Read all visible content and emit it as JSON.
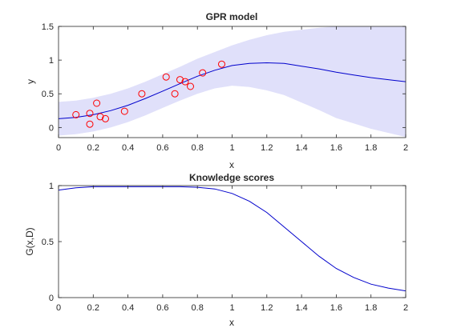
{
  "chart_data": [
    {
      "type": "line",
      "title": "GPR model",
      "xlabel": "x",
      "ylabel": "y",
      "xlim": [
        0,
        2
      ],
      "ylim": [
        -0.15,
        1.5
      ],
      "xticks": [
        0,
        0.2,
        0.4,
        0.6,
        0.8,
        1,
        1.2,
        1.4,
        1.6,
        1.8,
        2
      ],
      "xtick_labels": [
        "0",
        "0.2",
        "0.4",
        "0.6",
        "0.8",
        "1",
        "1.2",
        "1.4",
        "1.6",
        "1.8",
        "2"
      ],
      "yticks": [
        0,
        0.5,
        1,
        1.5
      ],
      "ytick_labels": [
        "0",
        "0.5",
        "1",
        "1.5"
      ],
      "grid": false,
      "colors": {
        "mean": "#0000cc",
        "band": "#e0e0fa",
        "points": "#ff0000",
        "axes": "#262626"
      },
      "series": [
        {
          "kind": "mean",
          "x": [
            0,
            0.1,
            0.2,
            0.3,
            0.4,
            0.5,
            0.6,
            0.7,
            0.8,
            0.9,
            1.0,
            1.1,
            1.2,
            1.3,
            1.4,
            1.5,
            1.6,
            1.7,
            1.8,
            1.9,
            2.0
          ],
          "y": [
            0.13,
            0.15,
            0.19,
            0.25,
            0.33,
            0.43,
            0.54,
            0.65,
            0.76,
            0.85,
            0.92,
            0.95,
            0.96,
            0.95,
            0.91,
            0.87,
            0.82,
            0.78,
            0.74,
            0.71,
            0.68
          ]
        },
        {
          "kind": "band",
          "x": [
            0,
            0.1,
            0.2,
            0.3,
            0.4,
            0.5,
            0.6,
            0.7,
            0.8,
            0.9,
            1.0,
            1.1,
            1.2,
            1.3,
            1.4,
            1.5,
            1.6,
            1.7,
            1.8,
            1.9,
            2.0
          ],
          "upper": [
            0.38,
            0.4,
            0.44,
            0.5,
            0.58,
            0.68,
            0.79,
            0.9,
            1.02,
            1.12,
            1.22,
            1.3,
            1.37,
            1.42,
            1.45,
            1.48,
            1.5,
            1.5,
            1.5,
            1.5,
            1.5
          ],
          "lower": [
            -0.12,
            -0.1,
            -0.06,
            0.0,
            0.08,
            0.18,
            0.29,
            0.4,
            0.5,
            0.58,
            0.62,
            0.6,
            0.55,
            0.48,
            0.37,
            0.26,
            0.14,
            0.06,
            -0.02,
            -0.08,
            -0.14
          ]
        },
        {
          "kind": "scatter",
          "x": [
            0.1,
            0.18,
            0.18,
            0.22,
            0.24,
            0.27,
            0.38,
            0.48,
            0.62,
            0.67,
            0.7,
            0.73,
            0.76,
            0.83,
            0.94
          ],
          "y": [
            0.19,
            0.05,
            0.21,
            0.36,
            0.16,
            0.13,
            0.24,
            0.5,
            0.75,
            0.5,
            0.71,
            0.68,
            0.61,
            0.81,
            0.94
          ]
        }
      ]
    },
    {
      "type": "line",
      "title": "Knowledge scores",
      "xlabel": "x",
      "ylabel": "G(x,D)",
      "xlim": [
        0,
        2
      ],
      "ylim": [
        0,
        1
      ],
      "xticks": [
        0,
        0.2,
        0.4,
        0.6,
        0.8,
        1,
        1.2,
        1.4,
        1.6,
        1.8,
        2
      ],
      "xtick_labels": [
        "0",
        "0.2",
        "0.4",
        "0.6",
        "0.8",
        "1",
        "1.2",
        "1.4",
        "1.6",
        "1.8",
        "2"
      ],
      "yticks": [
        0,
        0.5,
        1
      ],
      "ytick_labels": [
        "0",
        "0.5",
        "1"
      ],
      "grid": false,
      "colors": {
        "line": "#0000cc",
        "axes": "#262626"
      },
      "series": [
        {
          "kind": "line",
          "x": [
            0,
            0.1,
            0.2,
            0.3,
            0.4,
            0.5,
            0.6,
            0.7,
            0.8,
            0.9,
            1.0,
            1.1,
            1.2,
            1.3,
            1.4,
            1.5,
            1.6,
            1.7,
            1.8,
            1.9,
            2.0
          ],
          "y": [
            0.96,
            0.98,
            0.99,
            0.99,
            0.99,
            0.99,
            0.99,
            0.99,
            0.985,
            0.97,
            0.93,
            0.86,
            0.76,
            0.63,
            0.5,
            0.37,
            0.26,
            0.18,
            0.12,
            0.085,
            0.06
          ]
        }
      ]
    }
  ]
}
